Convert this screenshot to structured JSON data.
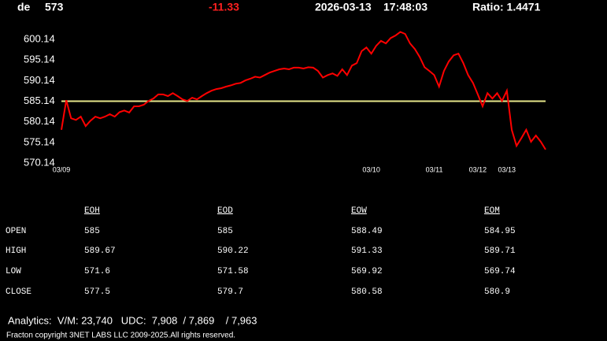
{
  "header": {
    "symbol": "de",
    "price": "573",
    "change": "-11.33",
    "date": "2026-03-13",
    "time": "17:48:03",
    "ratio": "Ratio: 1.4471"
  },
  "chart_data": {
    "type": "line",
    "color": "#ff0000",
    "x": [
      0,
      1,
      2,
      3,
      4,
      5,
      6,
      7,
      8,
      9,
      10,
      11,
      12,
      13,
      14,
      15,
      16,
      17,
      18,
      19,
      20,
      21,
      22,
      23,
      24,
      25,
      26,
      27,
      28,
      29,
      30,
      31,
      32,
      33,
      34,
      35,
      36,
      37,
      38,
      39,
      40,
      41,
      42,
      43,
      44,
      45,
      46,
      47,
      48,
      49,
      50,
      51,
      52,
      53,
      54,
      55,
      56,
      57,
      58,
      59,
      60,
      61,
      62,
      63,
      64,
      65,
      66,
      67,
      68,
      69,
      70,
      71,
      72,
      73,
      74,
      75,
      76,
      77,
      78,
      79,
      80,
      81,
      82,
      83,
      84,
      85,
      86,
      87,
      88,
      89,
      90,
      91,
      92,
      93,
      94,
      95,
      96,
      97,
      98,
      99,
      100
    ],
    "values": [
      578.2,
      585.4,
      581.0,
      580.6,
      581.4,
      579.1,
      580.4,
      581.4,
      581.0,
      581.4,
      582.0,
      581.4,
      582.5,
      582.9,
      582.4,
      583.9,
      583.9,
      584.3,
      585.2,
      585.8,
      586.8,
      586.8,
      586.4,
      587.1,
      586.4,
      585.6,
      585.2,
      586.0,
      585.6,
      586.4,
      587.1,
      587.7,
      588.1,
      588.3,
      588.7,
      589.0,
      589.4,
      589.6,
      590.2,
      590.6,
      591.1,
      590.9,
      591.5,
      592.1,
      592.5,
      592.9,
      593.1,
      592.9,
      593.3,
      593.3,
      593.1,
      593.4,
      593.3,
      592.5,
      590.9,
      591.5,
      591.9,
      591.3,
      592.9,
      591.5,
      593.8,
      594.4,
      597.3,
      598.2,
      596.7,
      598.6,
      599.8,
      599.2,
      600.5,
      601.1,
      602.0,
      601.5,
      599.2,
      597.8,
      595.9,
      593.4,
      592.5,
      591.5,
      588.7,
      592.5,
      594.8,
      596.3,
      596.7,
      594.4,
      591.5,
      589.6,
      586.8,
      583.9,
      587.1,
      585.8,
      587.1,
      585.2,
      587.7,
      578.2,
      574.3,
      576.2,
      578.2,
      575.3,
      576.8,
      575.3,
      573.4
    ],
    "xlim": [
      0,
      100
    ],
    "xticks": [
      {
        "value": 0,
        "label": "03/09"
      },
      {
        "value": 64,
        "label": "03/10"
      },
      {
        "value": 77,
        "label": "03/11"
      },
      {
        "value": 86,
        "label": "03/12"
      },
      {
        "value": 92,
        "label": "03/13"
      }
    ],
    "ylim": [
      568.6,
      604.0
    ],
    "yticks": [
      570.14,
      575.14,
      580.14,
      585.14,
      590.14,
      595.14,
      600.14
    ],
    "hline": 585.14,
    "hline_color": "#e6e68a"
  },
  "table": {
    "columns": [
      "EOH",
      "EOD",
      "EOW",
      "EOM"
    ],
    "rows": [
      [
        "OPEN",
        585,
        585,
        588.49,
        584.95
      ],
      [
        "HIGH",
        589.67,
        590.22,
        591.33,
        589.71
      ],
      [
        "LOW",
        571.6,
        571.58,
        569.92,
        569.74
      ],
      [
        "CLOSE",
        577.5,
        579.7,
        580.58,
        580.9
      ]
    ]
  },
  "footer": {
    "analytics": "Analytics:  V/M: 23,740   UDC:  7,908  / 7,869    / 7,963",
    "copyright": "Fracton copyright 3NET LABS LLC 2009-2025.All rights reserved."
  }
}
